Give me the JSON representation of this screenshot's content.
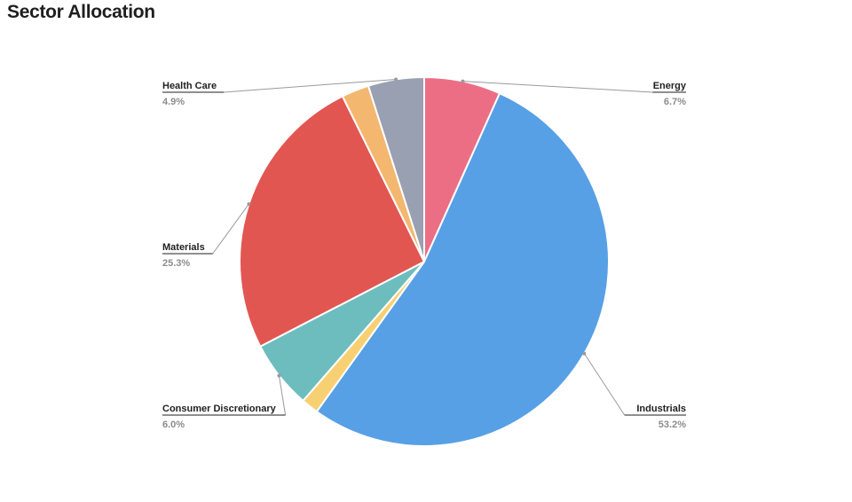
{
  "header": {
    "title": "Sector Allocation"
  },
  "chart_data": {
    "type": "pie",
    "title": "Sector Allocation",
    "start_angle_deg": 0,
    "direction": "clockwise",
    "slices": [
      {
        "label": "Energy",
        "value": 6.7,
        "pct_label": "6.7%",
        "color": "#ec6e85",
        "show_label": true
      },
      {
        "label": "Industrials",
        "value": 53.2,
        "pct_label": "53.2%",
        "color": "#57a0e5",
        "show_label": true
      },
      {
        "label": "",
        "value": 1.5,
        "pct_label": "",
        "color": "#f8d074",
        "show_label": false
      },
      {
        "label": "Consumer Discretionary",
        "value": 6.0,
        "pct_label": "6.0%",
        "color": "#6dbdbf",
        "show_label": true
      },
      {
        "label": "Materials",
        "value": 25.3,
        "pct_label": "25.3%",
        "color": "#e25652",
        "show_label": true
      },
      {
        "label": "",
        "value": 2.4,
        "pct_label": "",
        "color": "#f3b76f",
        "show_label": false
      },
      {
        "label": "Health Care",
        "value": 4.9,
        "pct_label": "4.9%",
        "color": "#98a0b2",
        "show_label": true
      }
    ]
  }
}
